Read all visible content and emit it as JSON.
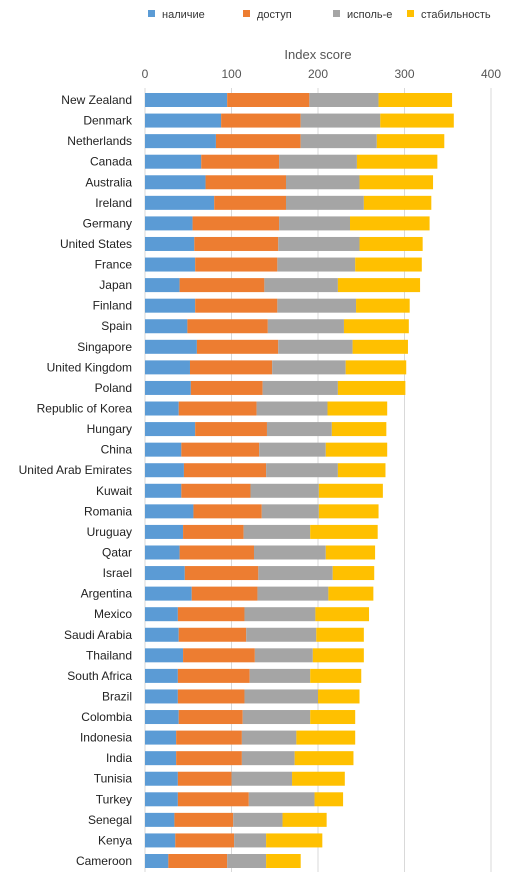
{
  "chart_data": {
    "type": "bar",
    "orientation": "horizontal",
    "stacked": true,
    "xlabel": "Index score",
    "xlim": [
      0,
      400
    ],
    "xticks": [
      "0",
      "100",
      "200",
      "300",
      "400"
    ],
    "grid": true,
    "legend_position": "top",
    "categories": [
      "New Zealand",
      "Denmark",
      "Netherlands",
      "Canada",
      "Australia",
      "Ireland",
      "Germany",
      "United States",
      "France",
      "Japan",
      "Finland",
      "Spain",
      "Singapore",
      "United Kingdom",
      "Poland",
      "Republic of Korea",
      "Hungary",
      "China",
      "United Arab Emirates",
      "Kuwait",
      "Romania",
      "Uruguay",
      "Qatar",
      "Israel",
      "Argentina",
      "Mexico",
      "Saudi Arabia",
      "Thailand",
      "South Africa",
      "Brazil",
      "Colombia",
      "Indonesia",
      "India",
      "Tunisia",
      "Turkey",
      "Senegal",
      "Kenya",
      "Cameroon"
    ],
    "series": [
      {
        "name": "наличие",
        "color": "#5b9bd5",
        "values": [
          95,
          88,
          82,
          65,
          70,
          80,
          55,
          57,
          58,
          40,
          58,
          49,
          60,
          52,
          53,
          39,
          58,
          42,
          45,
          42,
          56,
          44,
          40,
          46,
          54,
          38,
          39,
          44,
          38,
          38,
          39,
          36,
          36,
          38,
          38,
          34,
          35,
          27
        ]
      },
      {
        "name": "доступ",
        "color": "#ed7d31",
        "values": [
          95,
          92,
          98,
          90,
          93,
          83,
          100,
          97,
          95,
          98,
          95,
          93,
          94,
          95,
          83,
          90,
          83,
          90,
          95,
          80,
          79,
          70,
          86,
          85,
          76,
          77,
          78,
          83,
          83,
          77,
          74,
          76,
          76,
          62,
          82,
          68,
          68,
          68
        ]
      },
      {
        "name": "исполь-е",
        "color": "#a5a5a5",
        "values": [
          80,
          92,
          88,
          90,
          85,
          90,
          82,
          94,
          90,
          85,
          91,
          88,
          86,
          85,
          87,
          82,
          75,
          77,
          83,
          79,
          66,
          77,
          83,
          86,
          82,
          82,
          81,
          67,
          70,
          85,
          78,
          63,
          61,
          70,
          76,
          57,
          37,
          45
        ]
      },
      {
        "name": "стабильность",
        "color": "#ffc000",
        "values": [
          85,
          85,
          78,
          93,
          85,
          78,
          92,
          73,
          77,
          95,
          62,
          75,
          64,
          70,
          78,
          69,
          63,
          71,
          55,
          74,
          69,
          78,
          57,
          48,
          52,
          62,
          55,
          59,
          59,
          48,
          52,
          68,
          68,
          61,
          33,
          51,
          65,
          40
        ]
      }
    ]
  }
}
